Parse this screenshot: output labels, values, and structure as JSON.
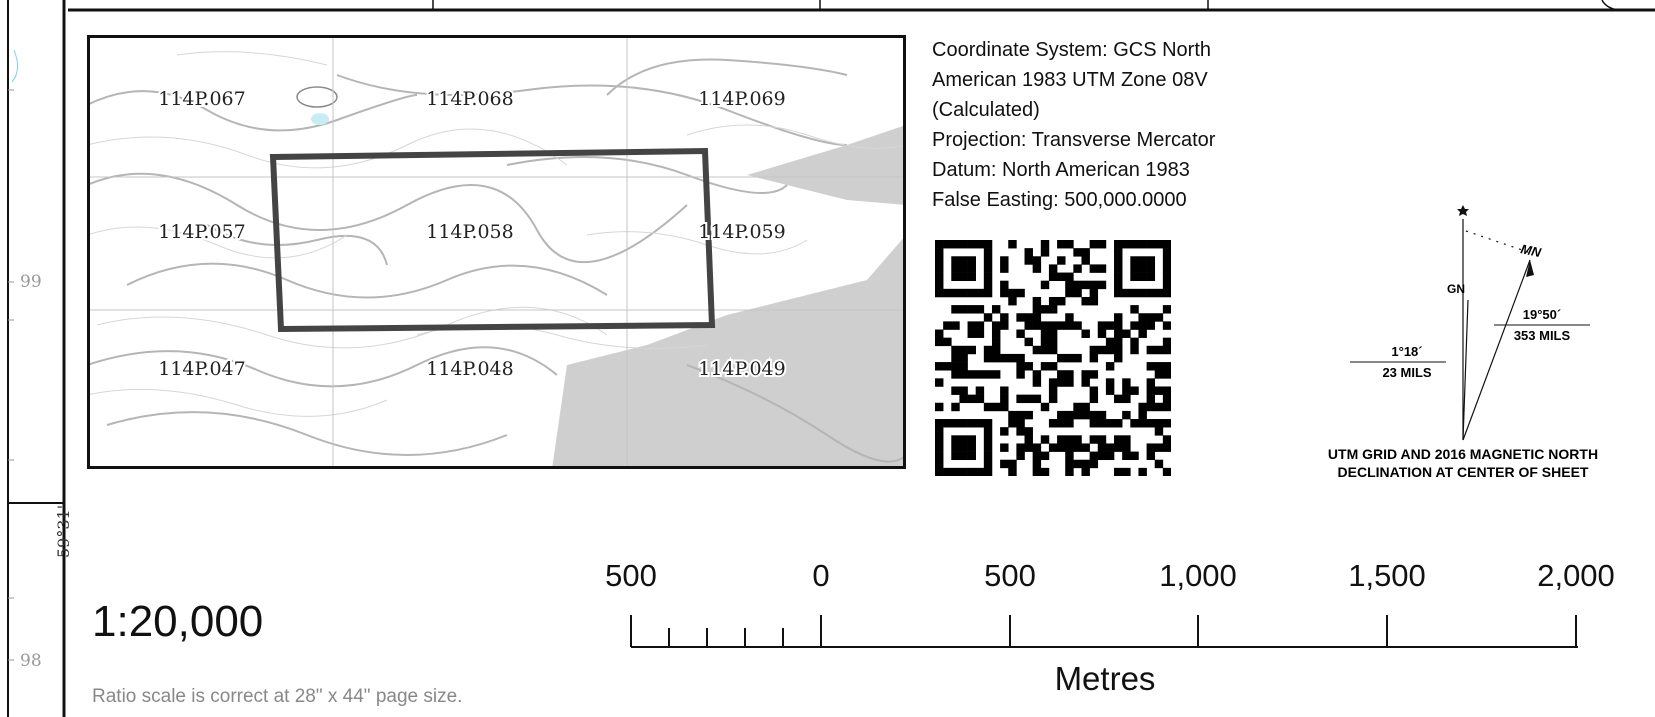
{
  "map_index": {
    "sheets": [
      {
        "id": "114P.067",
        "x": 0,
        "y": 0
      },
      {
        "id": "114P.068",
        "x": 1,
        "y": 0
      },
      {
        "id": "114P.069",
        "x": 2,
        "y": 0
      },
      {
        "id": "114P.057",
        "x": 0,
        "y": 1
      },
      {
        "id": "114P.058",
        "x": 1,
        "y": 1
      },
      {
        "id": "114P.059",
        "x": 2,
        "y": 1
      },
      {
        "id": "114P.047",
        "x": 0,
        "y": 2
      },
      {
        "id": "114P.048",
        "x": 1,
        "y": 2
      },
      {
        "id": "114P.049",
        "x": 2,
        "y": 2
      }
    ]
  },
  "coordinate_info": {
    "lines": [
      "Coordinate System: GCS North",
      "American 1983 UTM Zone 08V",
      "(Calculated)",
      "Projection: Transverse Mercator",
      "Datum: North American 1983",
      "False Easting: 500,000.0000"
    ]
  },
  "declination": {
    "gn_label": "GN",
    "mn_label": "MN",
    "grid_angle": "1°18´",
    "grid_mils": "23 MILS",
    "mag_angle": "19°50´",
    "mag_mils": "353 MILS",
    "caption_line1": "UTM GRID AND 2016 MAGNETIC NORTH",
    "caption_line2": "DECLINATION AT CENTER OF SHEET"
  },
  "scale": {
    "ratio": "1:20,000",
    "note": "Ratio scale is correct at 28\" x 44\" page size.",
    "unit": "Metres",
    "ticks": [
      "500",
      "0",
      "500",
      "1,000",
      "1,500",
      "2,000"
    ]
  },
  "margin": {
    "grid_99": "99",
    "grid_98": "98",
    "latitude": "59°31'"
  },
  "colors": {
    "frame": "#111111",
    "contour": "#b8b8b8",
    "water": "#c6ecf4",
    "outside": "#cfcfcf",
    "highlight": "#444444"
  }
}
